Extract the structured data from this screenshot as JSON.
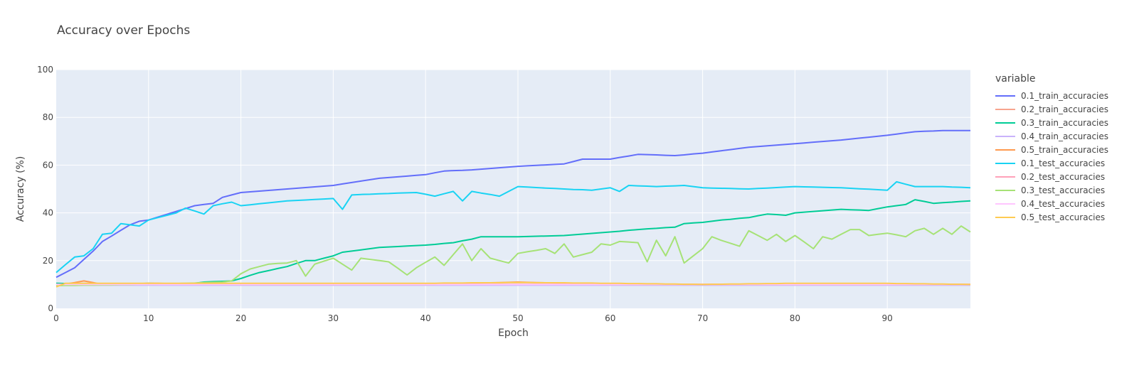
{
  "chart_data": {
    "type": "line",
    "title": "Accuracy over Epochs",
    "xlabel": "Epoch",
    "ylabel": "Accuracy (%)",
    "xlim": [
      0,
      99
    ],
    "ylim": [
      0,
      100
    ],
    "xticks": [
      0,
      10,
      20,
      30,
      40,
      50,
      60,
      70,
      80,
      90
    ],
    "yticks": [
      0,
      20,
      40,
      60,
      80,
      100
    ],
    "grid": true,
    "legend_title": "variable",
    "legend_position": "right",
    "series": [
      {
        "name": "0.1_train_accuracies",
        "color": "#636efa",
        "anchors": [
          [
            0,
            13
          ],
          [
            2,
            17
          ],
          [
            4,
            24
          ],
          [
            5,
            28
          ],
          [
            8,
            35
          ],
          [
            9,
            36.5
          ],
          [
            10,
            37
          ],
          [
            15,
            43
          ],
          [
            17,
            44
          ],
          [
            18,
            46.5
          ],
          [
            20,
            48.5
          ],
          [
            25,
            50
          ],
          [
            30,
            51.5
          ],
          [
            35,
            54.5
          ],
          [
            40,
            56
          ],
          [
            42,
            57.5
          ],
          [
            45,
            58
          ],
          [
            50,
            59.5
          ],
          [
            55,
            60.5
          ],
          [
            57,
            62.5
          ],
          [
            60,
            62.5
          ],
          [
            63,
            64.5
          ],
          [
            67,
            64
          ],
          [
            70,
            65
          ],
          [
            75,
            67.5
          ],
          [
            80,
            69
          ],
          [
            85,
            70.5
          ],
          [
            90,
            72.5
          ],
          [
            93,
            74
          ],
          [
            96,
            74.5
          ],
          [
            99,
            74.5
          ]
        ],
        "values": []
      },
      {
        "name": "0.2_train_accuracies",
        "color": "#f7a48e",
        "anchors": [
          [
            0,
            9.9
          ],
          [
            99,
            9.9
          ]
        ],
        "values": []
      },
      {
        "name": "0.3_train_accuracies",
        "color": "#00cc96",
        "anchors": [
          [
            0,
            10.5
          ],
          [
            4,
            10
          ],
          [
            8,
            10
          ],
          [
            10,
            10.5
          ],
          [
            14,
            10
          ],
          [
            16,
            11
          ],
          [
            19,
            11.5
          ],
          [
            20,
            12.5
          ],
          [
            22,
            15
          ],
          [
            25,
            17.5
          ],
          [
            27,
            20
          ],
          [
            28,
            20
          ],
          [
            30,
            22
          ],
          [
            31,
            23.5
          ],
          [
            35,
            25.5
          ],
          [
            40,
            26.5
          ],
          [
            43,
            27.5
          ],
          [
            45,
            29
          ],
          [
            46,
            30
          ],
          [
            50,
            30
          ],
          [
            55,
            30.5
          ],
          [
            60,
            32
          ],
          [
            63,
            33
          ],
          [
            67,
            34
          ],
          [
            68,
            35.5
          ],
          [
            70,
            36
          ],
          [
            72,
            37
          ],
          [
            75,
            38
          ],
          [
            77,
            39.5
          ],
          [
            79,
            39
          ],
          [
            80,
            40
          ],
          [
            85,
            41.5
          ],
          [
            88,
            41
          ],
          [
            90,
            42.5
          ],
          [
            92,
            43.5
          ],
          [
            93,
            45.5
          ],
          [
            95,
            44
          ],
          [
            99,
            45
          ]
        ],
        "values": []
      },
      {
        "name": "0.4_train_accuracies",
        "color": "#c9b3fb",
        "anchors": [
          [
            0,
            9.7
          ],
          [
            99,
            9.7
          ]
        ],
        "values": []
      },
      {
        "name": "0.5_train_accuracies",
        "color": "#ff9a4f",
        "anchors": [
          [
            0,
            9.5
          ],
          [
            3,
            11.5
          ],
          [
            5,
            10
          ],
          [
            10,
            10.5
          ],
          [
            20,
            10
          ],
          [
            30,
            10
          ],
          [
            40,
            10
          ],
          [
            50,
            11
          ],
          [
            60,
            10
          ],
          [
            70,
            10
          ],
          [
            80,
            10
          ],
          [
            90,
            10
          ],
          [
            99,
            10
          ]
        ],
        "values": []
      },
      {
        "name": "0.1_test_accuracies",
        "color": "#19d3f3",
        "anchors": [
          [
            0,
            15
          ],
          [
            2,
            21.5
          ],
          [
            3,
            22
          ],
          [
            4,
            25
          ],
          [
            5,
            31
          ],
          [
            6,
            31.5
          ],
          [
            7,
            35.5
          ],
          [
            8,
            35
          ],
          [
            9,
            34.5
          ],
          [
            10,
            37
          ],
          [
            13,
            40
          ],
          [
            14,
            42
          ],
          [
            16,
            39.5
          ],
          [
            17,
            43
          ],
          [
            19,
            44.5
          ],
          [
            20,
            43
          ],
          [
            25,
            45
          ],
          [
            30,
            46
          ],
          [
            31,
            41.5
          ],
          [
            32,
            47.5
          ],
          [
            35,
            48
          ],
          [
            39,
            48.5
          ],
          [
            41,
            47
          ],
          [
            43,
            49
          ],
          [
            44,
            45
          ],
          [
            45,
            49
          ],
          [
            48,
            47
          ],
          [
            50,
            51
          ],
          [
            55,
            50
          ],
          [
            58,
            49.5
          ],
          [
            60,
            50.5
          ],
          [
            61,
            49
          ],
          [
            62,
            51.5
          ],
          [
            65,
            51
          ],
          [
            68,
            51.5
          ],
          [
            70,
            50.5
          ],
          [
            75,
            50
          ],
          [
            80,
            51
          ],
          [
            85,
            50.5
          ],
          [
            90,
            49.5
          ],
          [
            91,
            53
          ],
          [
            93,
            51
          ],
          [
            96,
            51
          ],
          [
            99,
            50.5
          ]
        ],
        "values": []
      },
      {
        "name": "0.2_test_accuracies",
        "color": "#ffa1b9",
        "anchors": [
          [
            0,
            10.1
          ],
          [
            99,
            10.1
          ]
        ],
        "values": []
      },
      {
        "name": "0.3_test_accuracies",
        "color": "#a6e276",
        "anchors": [
          [
            0,
            9.5
          ],
          [
            10,
            10
          ],
          [
            18,
            11
          ],
          [
            19,
            11.5
          ],
          [
            20,
            14.5
          ],
          [
            21,
            16.5
          ],
          [
            23,
            18.5
          ],
          [
            25,
            19
          ],
          [
            26,
            20
          ],
          [
            27,
            13.5
          ],
          [
            28,
            18.5
          ],
          [
            30,
            21
          ],
          [
            32,
            16
          ],
          [
            33,
            21
          ],
          [
            36,
            19.5
          ],
          [
            38,
            14
          ],
          [
            39,
            17
          ],
          [
            41,
            21.5
          ],
          [
            42,
            18
          ],
          [
            44,
            27
          ],
          [
            45,
            20
          ],
          [
            46,
            25
          ],
          [
            47,
            21
          ],
          [
            49,
            19
          ],
          [
            50,
            23
          ],
          [
            53,
            25
          ],
          [
            54,
            23
          ],
          [
            55,
            27
          ],
          [
            56,
            21.5
          ],
          [
            58,
            23.5
          ],
          [
            59,
            27
          ],
          [
            60,
            26.5
          ],
          [
            61,
            28
          ],
          [
            63,
            27.5
          ],
          [
            64,
            19.5
          ],
          [
            65,
            28.5
          ],
          [
            66,
            22
          ],
          [
            67,
            30
          ],
          [
            68,
            19
          ],
          [
            70,
            25
          ],
          [
            71,
            30
          ],
          [
            72,
            28.5
          ],
          [
            74,
            26
          ],
          [
            75,
            32.5
          ],
          [
            77,
            28.5
          ],
          [
            78,
            31
          ],
          [
            79,
            28
          ],
          [
            80,
            30.5
          ],
          [
            82,
            25
          ],
          [
            83,
            30
          ],
          [
            84,
            29
          ],
          [
            86,
            33
          ],
          [
            87,
            33
          ],
          [
            88,
            30.5
          ],
          [
            90,
            31.5
          ],
          [
            92,
            30
          ],
          [
            93,
            32.5
          ],
          [
            94,
            33.5
          ],
          [
            95,
            31
          ],
          [
            96,
            33.5
          ],
          [
            97,
            31
          ],
          [
            98,
            34.5
          ],
          [
            99,
            32
          ]
        ],
        "values": []
      },
      {
        "name": "0.4_test_accuracies",
        "color": "#ffc6ff",
        "anchors": [
          [
            0,
            10
          ],
          [
            99,
            10
          ]
        ],
        "values": []
      },
      {
        "name": "0.5_test_accuracies",
        "color": "#fecb52",
        "anchors": [
          [
            0,
            9
          ],
          [
            1,
            10.5
          ],
          [
            10,
            10.5
          ],
          [
            20,
            10.5
          ],
          [
            30,
            10.5
          ],
          [
            40,
            10.5
          ],
          [
            50,
            10.8
          ],
          [
            60,
            10.5
          ],
          [
            70,
            10
          ],
          [
            80,
            10.5
          ],
          [
            90,
            10.5
          ],
          [
            99,
            10
          ]
        ],
        "values": []
      }
    ]
  }
}
